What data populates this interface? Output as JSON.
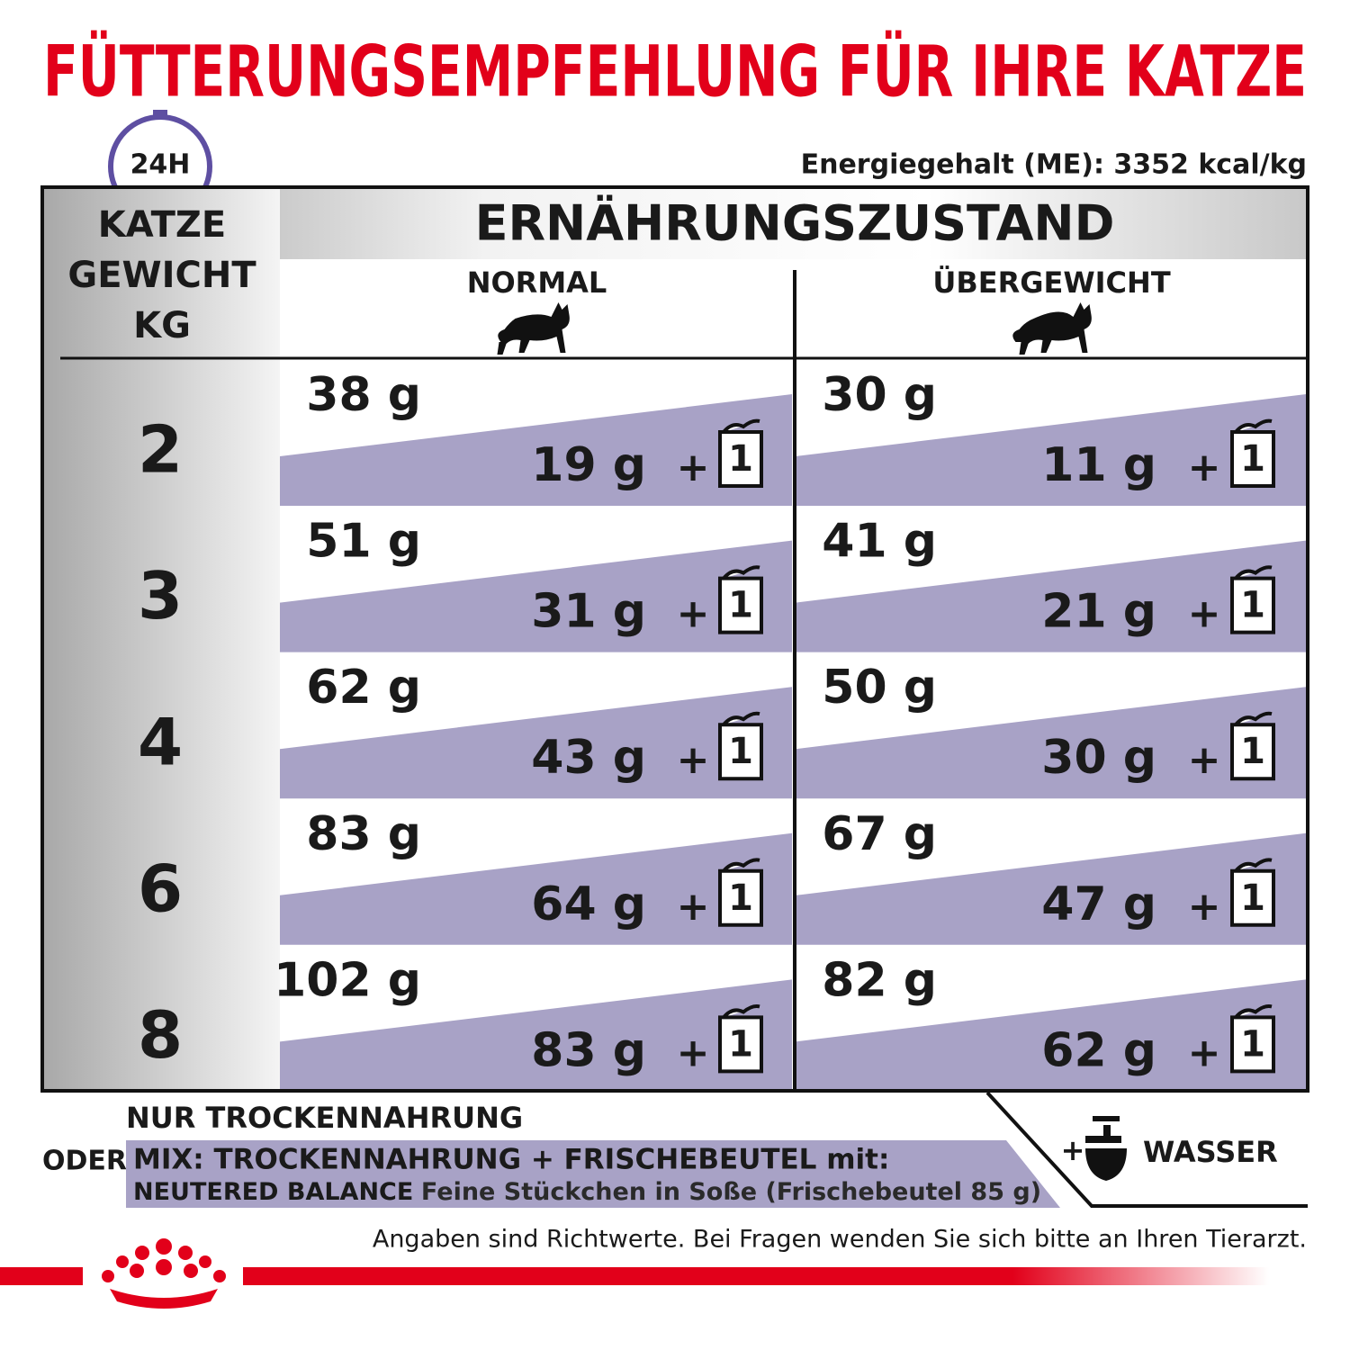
{
  "header": {
    "title": "FÜTTERUNGSEMPFEHLUNG FÜR IHRE KATZE",
    "clock_label": "24H",
    "energy": "Energiegehalt (ME): 3352 kcal/kg"
  },
  "table": {
    "weight_header": [
      "KATZE",
      "GEWICHT",
      "KG"
    ],
    "group_header": "ERNÄHRUNGSZUSTAND",
    "columns": [
      "NORMAL",
      "ÜBERGEWICHT"
    ],
    "plus": "+",
    "pouch": "1",
    "rows": [
      {
        "weight": "2",
        "cells": [
          {
            "dry": "38 g",
            "mix": "19 g"
          },
          {
            "dry": "30 g",
            "mix": "11 g"
          }
        ]
      },
      {
        "weight": "3",
        "cells": [
          {
            "dry": "51 g",
            "mix": "31 g"
          },
          {
            "dry": "41 g",
            "mix": "21 g"
          }
        ]
      },
      {
        "weight": "4",
        "cells": [
          {
            "dry": "62 g",
            "mix": "43 g"
          },
          {
            "dry": "50 g",
            "mix": "30 g"
          }
        ]
      },
      {
        "weight": "6",
        "cells": [
          {
            "dry": "83 g",
            "mix": "64 g"
          },
          {
            "dry": "67 g",
            "mix": "47 g"
          }
        ]
      },
      {
        "weight": "8",
        "cells": [
          {
            "dry": "102 g",
            "mix": "83 g"
          },
          {
            "dry": "82 g",
            "mix": "62 g"
          }
        ]
      }
    ]
  },
  "legend": {
    "dry_only": "NUR TROCKENNAHRUNG",
    "or": "ODER",
    "mix": "MIX: TROCKENNAHRUNG + FRISCHEBEUTEL mit:",
    "product_name": "NEUTERED BALANCE",
    "product_detail": "Feine Stückchen in Soße (Frischebeutel 85 g)",
    "water_plus": "+",
    "water": "WASSER"
  },
  "footer": {
    "note": "Angaben sind Richtwerte. Bei Fragen wenden Sie sich bitte an Ihren Tierarzt."
  }
}
